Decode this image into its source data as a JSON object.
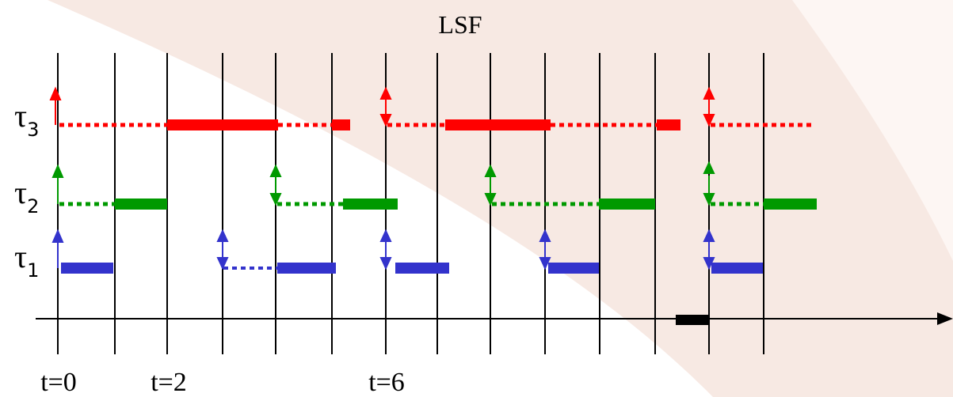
{
  "diagram": {
    "title": "LSF",
    "tasks": [
      {
        "symbol": "τ",
        "index": "3",
        "color": "#ff0000"
      },
      {
        "symbol": "τ",
        "index": "2",
        "color": "#009900"
      },
      {
        "symbol": "τ",
        "index": "1",
        "color": "#3333cc"
      }
    ],
    "time_labels": [
      "t=0",
      "t=2",
      "t=6"
    ],
    "colors": {
      "tau3": "#ff0000",
      "tau2": "#009900",
      "tau1": "#3333cc",
      "idle": "#000000",
      "background_watermark": "#f7e8e1"
    }
  }
}
